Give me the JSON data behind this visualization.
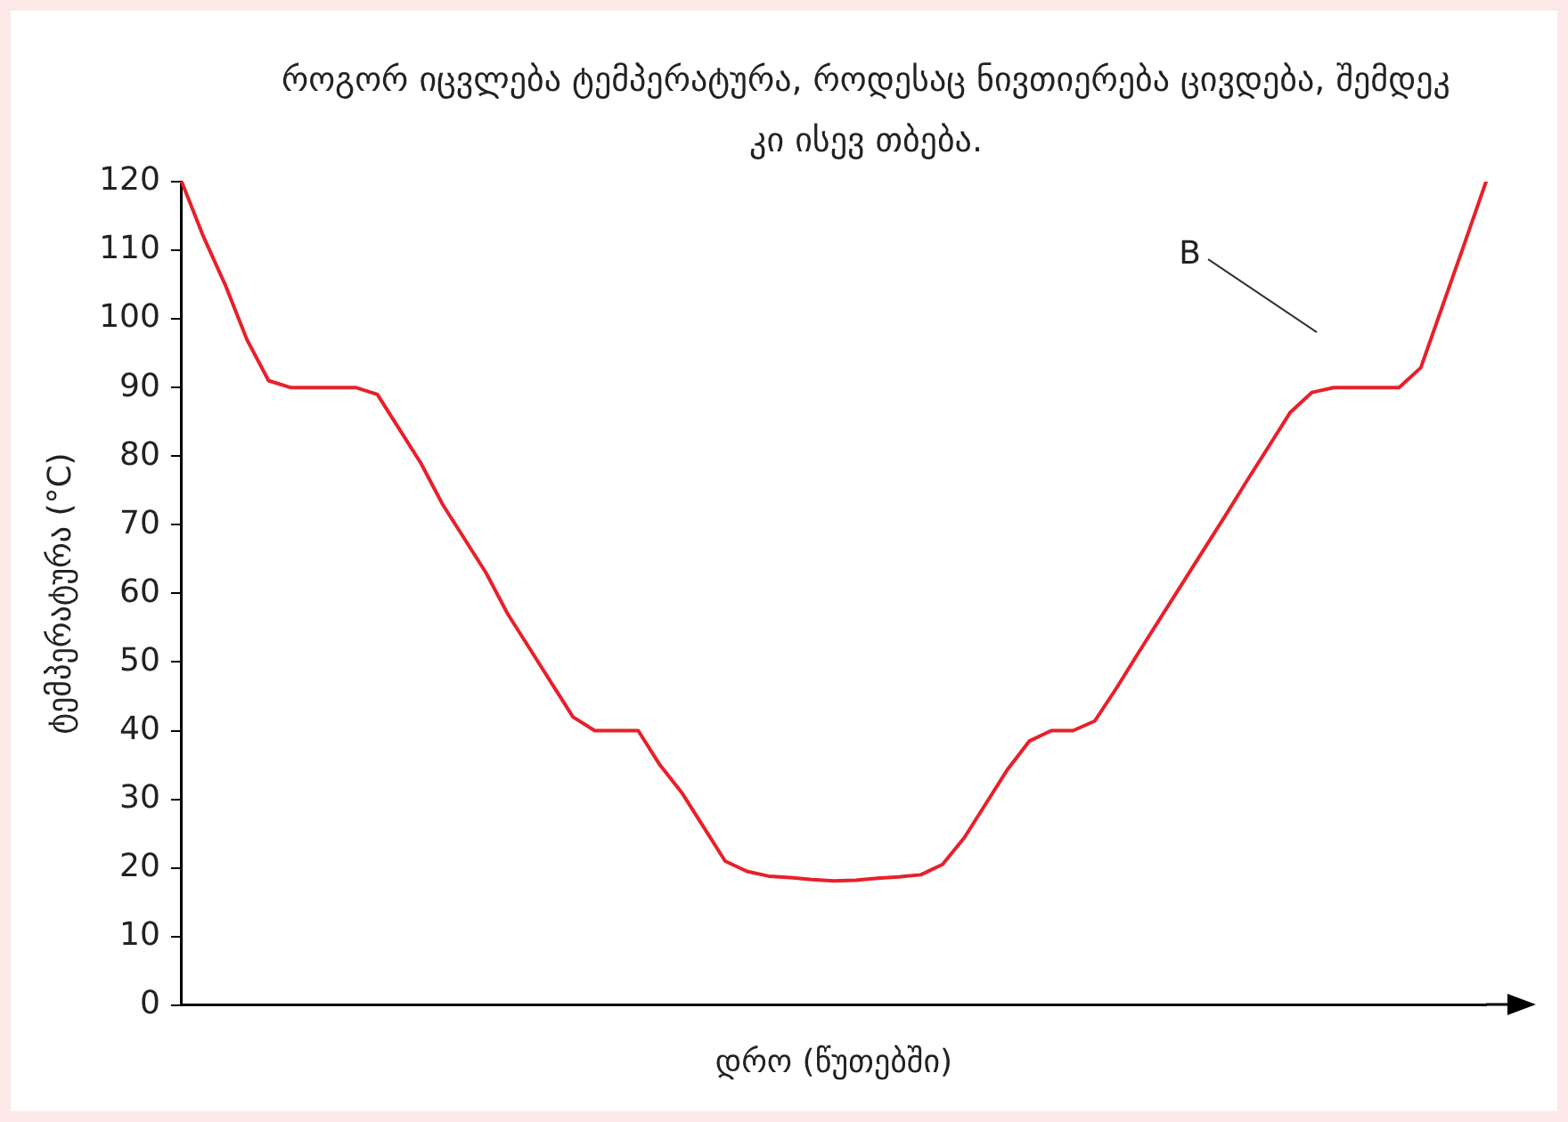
{
  "chart_data": {
    "type": "line",
    "title": "როგორ იცვლება ტემპერატურა, როდესაც ნივთიერება ცივდება, შემდეკ კი ისევ თბება.",
    "xlabel": "დრო (წუთებში)",
    "ylabel": "ტემპერატურა (°C)",
    "categories": [
      null,
      null,
      null,
      null,
      null,
      null,
      null,
      null,
      null,
      null,
      null,
      null,
      null,
      null,
      null,
      null,
      null,
      null,
      null,
      null,
      null,
      null,
      null,
      null,
      null,
      null,
      null,
      null,
      null,
      null,
      null,
      null,
      null,
      null,
      null,
      null,
      null,
      null,
      null,
      null,
      null,
      null,
      null,
      null,
      null,
      null,
      null,
      null,
      null,
      null,
      null,
      null,
      null,
      null,
      null,
      null,
      null,
      null,
      null,
      null,
      null
    ],
    "series": [
      {
        "color": "#e8202a",
        "values": [
          120,
          112,
          105,
          97,
          91,
          90,
          90,
          90,
          90,
          89,
          84,
          79,
          73,
          68,
          63,
          57,
          52,
          47,
          42,
          40,
          40,
          40,
          35,
          31,
          26,
          21,
          19.5,
          18.8,
          18.6,
          18.3,
          18.1,
          18.2,
          18.5,
          18.7,
          19,
          20.5,
          24.4,
          29.4,
          34.4,
          38.5,
          40,
          40,
          41.4,
          46.2,
          51.3,
          56.3,
          61.3,
          66.3,
          71.3,
          76.4,
          81.4,
          86.4,
          89.3,
          90,
          90,
          90,
          90,
          92.9,
          101.9,
          110.9,
          120
        ]
      }
    ],
    "ylim": [
      0,
      120
    ],
    "yticks": [
      0,
      10,
      20,
      30,
      40,
      50,
      60,
      70,
      80,
      90,
      100,
      110,
      120
    ],
    "grid": false,
    "legend": false,
    "tick_labels": "y",
    "marker": "none",
    "line_style": "solid",
    "annotations": [
      "B"
    ]
  }
}
